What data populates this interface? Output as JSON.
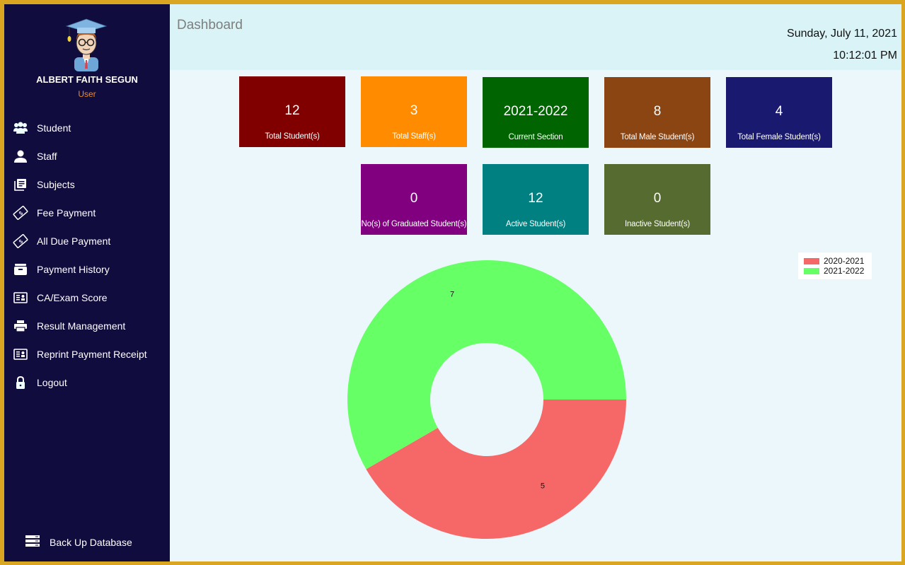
{
  "header": {
    "title": "Dashboard",
    "date": "Sunday, July 11, 2021",
    "time": "10:12:01 PM"
  },
  "user": {
    "name": "ALBERT FAITH SEGUN",
    "role": "User"
  },
  "sidebar": {
    "items": [
      {
        "label": "Student",
        "icon": "users-icon"
      },
      {
        "label": "Staff",
        "icon": "user-icon"
      },
      {
        "label": "Subjects",
        "icon": "book-icon"
      },
      {
        "label": "Fee Payment",
        "icon": "money-bill-icon"
      },
      {
        "label": "All Due Payment",
        "icon": "money-bill-icon"
      },
      {
        "label": "Payment History",
        "icon": "archive-icon"
      },
      {
        "label": "CA/Exam Score",
        "icon": "id-card-icon"
      },
      {
        "label": "Result Management",
        "icon": "printer-icon"
      },
      {
        "label": "Reprint Payment Receipt",
        "icon": "id-card-icon"
      },
      {
        "label": "Logout",
        "icon": "lock-icon"
      }
    ],
    "backup": {
      "label": "Back Up Database",
      "icon": "server-icon"
    }
  },
  "cards": [
    {
      "value": "12",
      "label": "Total Student(s)",
      "color": "#800000"
    },
    {
      "value": "3",
      "label": "Total Staff(s)",
      "color": "#FF8C00"
    },
    {
      "value": "2021-2022",
      "label": "Current Section",
      "color": "#006400"
    },
    {
      "value": "8",
      "label": "Total Male Student(s)",
      "color": "#8B4513"
    },
    {
      "value": "4",
      "label": "Total Female Student(s)",
      "color": "#191970"
    },
    {
      "value": "0",
      "label": "No(s) of Graduated Student(s)",
      "color": "#800080"
    },
    {
      "value": "12",
      "label": "Active Student(s)",
      "color": "#008080"
    },
    {
      "value": "0",
      "label": "Inactive Student(s)",
      "color": "#556B2F"
    }
  ],
  "chart_data": {
    "type": "pie",
    "subtype": "doughnut",
    "title": "",
    "categories": [
      "2020-2021",
      "2021-2022"
    ],
    "values": [
      5,
      7
    ],
    "colors": [
      "#F66868",
      "#66FF66"
    ],
    "data_labels": [
      "5",
      "7"
    ],
    "legend_position": "top-right"
  }
}
